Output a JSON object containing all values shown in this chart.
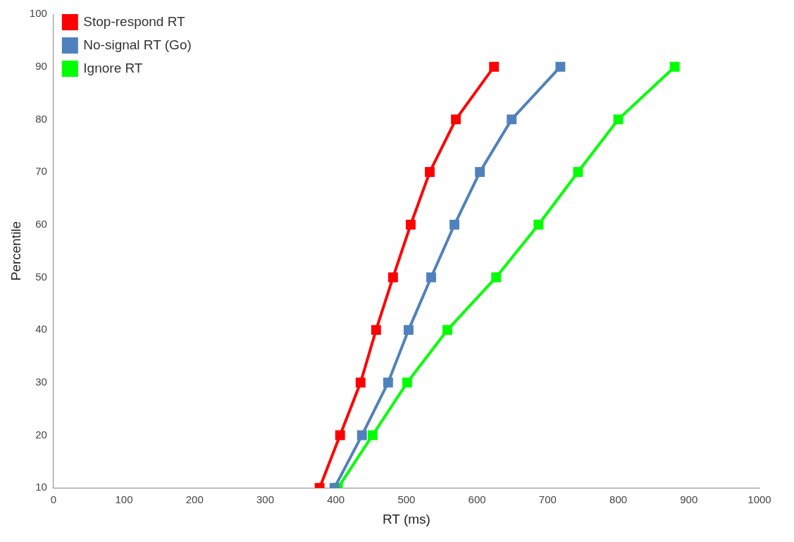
{
  "chart_data": {
    "type": "line",
    "xlabel": "RT (ms)",
    "ylabel": "Percentile",
    "xlim": [
      0,
      1000
    ],
    "xticks": [
      0,
      100,
      200,
      300,
      400,
      500,
      600,
      700,
      800,
      900,
      1000
    ],
    "ylim": [
      10,
      100
    ],
    "yticks": [
      10,
      20,
      30,
      40,
      50,
      60,
      70,
      80,
      90,
      100
    ],
    "grid": false,
    "legend": "top left",
    "marker": "square",
    "line_style": "solid",
    "series": [
      {
        "name": "Stop-respond RT",
        "color": "#ff0000",
        "x": [
          377,
          406,
          435,
          457,
          481,
          506,
          533,
          570,
          624
        ],
        "values": [
          10,
          20,
          30,
          40,
          50,
          60,
          70,
          80,
          90
        ]
      },
      {
        "name": "No-signal RT (Go)",
        "color": "#4f81bd",
        "x": [
          398,
          437,
          474,
          503,
          535,
          568,
          604,
          649,
          718
        ],
        "values": [
          10,
          20,
          30,
          40,
          50,
          60,
          70,
          80,
          90
        ]
      },
      {
        "name": "Ignore RT",
        "color": "#00ff00",
        "x": [
          403,
          452,
          501,
          558,
          627,
          687,
          743,
          800,
          880
        ],
        "values": [
          10,
          20,
          30,
          40,
          50,
          60,
          70,
          80,
          90
        ]
      }
    ]
  }
}
